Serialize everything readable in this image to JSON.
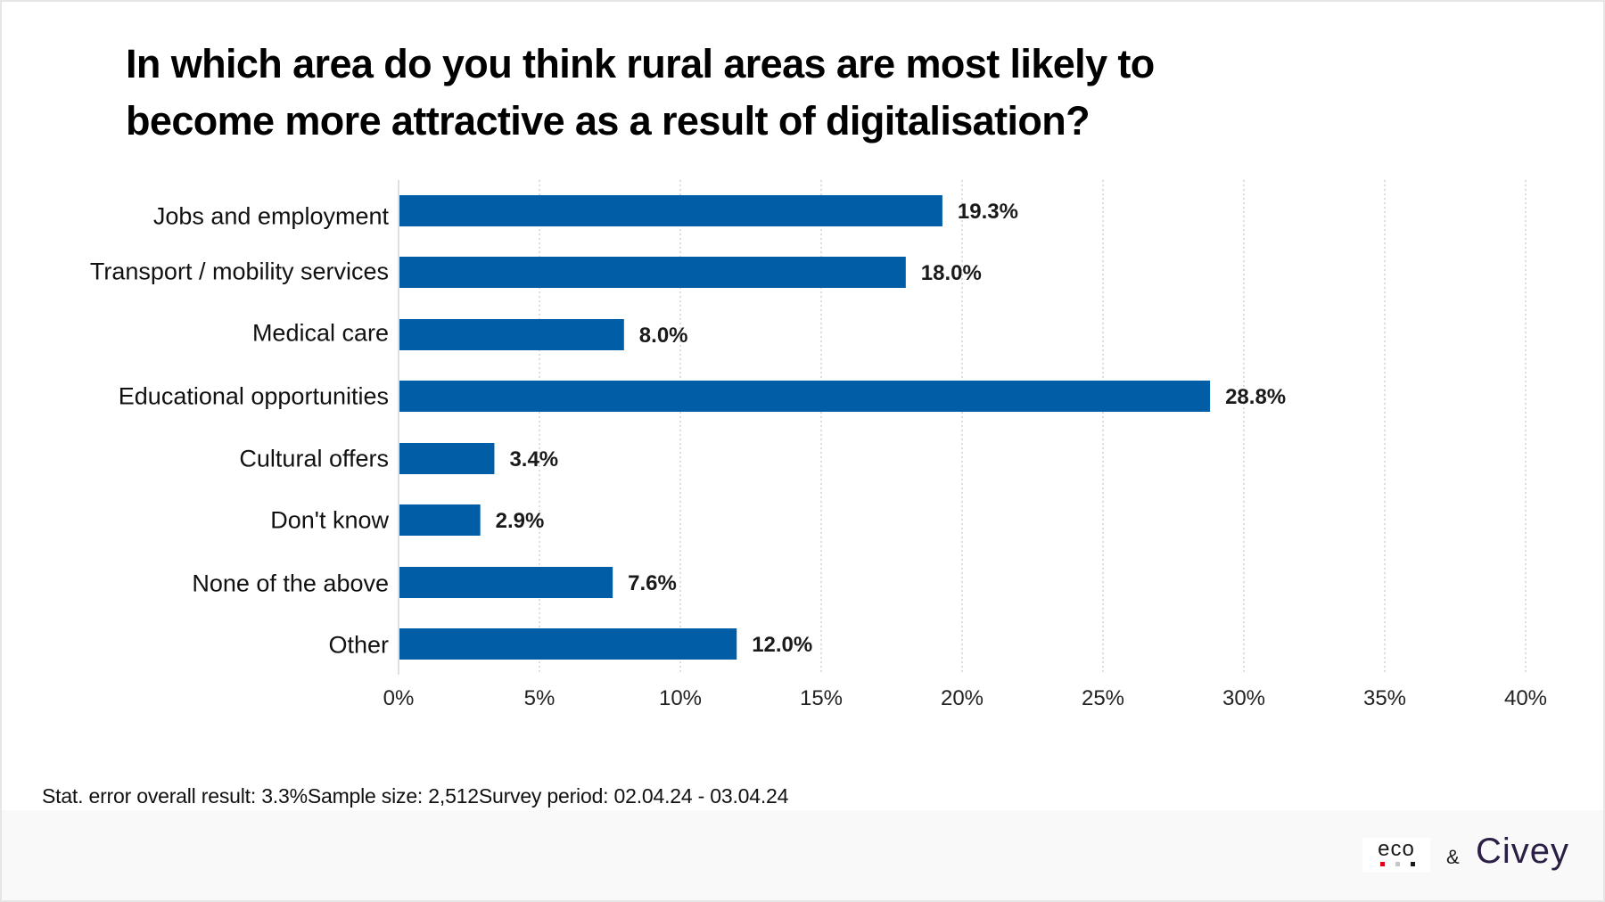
{
  "title": {
    "line1": "In which area do you think rural areas are most likely to",
    "line2": "become more attractive as a result of digitalisation?"
  },
  "chart_data": {
    "type": "bar",
    "orientation": "horizontal",
    "title": "In which area do you think rural areas are most likely to become more attractive as a result of digitalisation?",
    "categories": [
      "Jobs and employment",
      "Transport / mobility services",
      "Medical care",
      "Educational opportunities",
      "Cultural offers",
      "Don't know",
      "None of the above",
      "Other"
    ],
    "values": [
      19.3,
      18.0,
      8.0,
      28.8,
      3.4,
      2.9,
      7.6,
      12.0
    ],
    "value_labels": [
      "19.3%",
      "18.0%",
      "8.0%",
      "28.8%",
      "3.4%",
      "2.9%",
      "7.6%",
      "12.0%"
    ],
    "xlim": [
      0,
      40
    ],
    "x_ticks": [
      0,
      5,
      10,
      15,
      20,
      25,
      30,
      35,
      40
    ],
    "x_tick_labels": [
      "0%",
      "5%",
      "10%",
      "15%",
      "20%",
      "25%",
      "30%",
      "35%",
      "40%"
    ],
    "xlabel": "",
    "ylabel": "",
    "grid": true,
    "bar_color": "#005da6"
  },
  "footnote": "Stat. error overall result: 3.3%Sample size: 2,512Survey period: 02.04.24 - 03.04.24",
  "logos": {
    "eco": "eco",
    "ampersand": "&",
    "civey": "Civey",
    "eco_dot_colors": [
      "#e2001a",
      "#c6c6c6",
      "#1a1a1a"
    ]
  }
}
